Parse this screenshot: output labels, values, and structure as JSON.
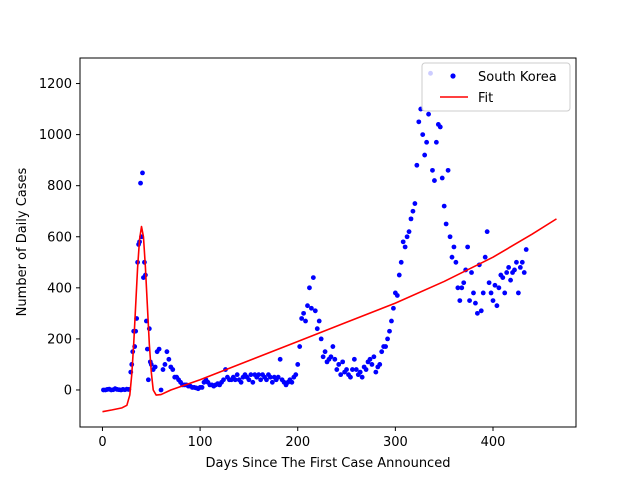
{
  "chart_data": {
    "type": "scatter",
    "xlabel": "Days Since The First Case Announced",
    "ylabel": "Number of Daily Cases",
    "xlim": [
      -23,
      485
    ],
    "ylim": [
      -145,
      1300
    ],
    "xticks": [
      0,
      100,
      200,
      300,
      400
    ],
    "yticks": [
      0,
      200,
      400,
      600,
      800,
      1000,
      1200
    ],
    "grid": false,
    "legend_position": "top-right",
    "series": [
      {
        "name": "South Korea",
        "kind": "scatter",
        "color": "#0000ff",
        "points": [
          [
            1,
            0
          ],
          [
            3,
            0
          ],
          [
            5,
            2
          ],
          [
            7,
            3
          ],
          [
            9,
            0
          ],
          [
            11,
            1
          ],
          [
            13,
            5
          ],
          [
            15,
            2
          ],
          [
            17,
            1
          ],
          [
            19,
            0
          ],
          [
            21,
            2
          ],
          [
            23,
            1
          ],
          [
            25,
            3
          ],
          [
            27,
            2
          ],
          [
            29,
            70
          ],
          [
            30,
            100
          ],
          [
            31,
            150
          ],
          [
            32,
            230
          ],
          [
            33,
            170
          ],
          [
            34,
            230
          ],
          [
            35,
            280
          ],
          [
            36,
            500
          ],
          [
            37,
            570
          ],
          [
            38,
            580
          ],
          [
            39,
            810
          ],
          [
            40,
            600
          ],
          [
            41,
            850
          ],
          [
            42,
            440
          ],
          [
            43,
            500
          ],
          [
            44,
            450
          ],
          [
            45,
            270
          ],
          [
            46,
            160
          ],
          [
            47,
            40
          ],
          [
            48,
            240
          ],
          [
            49,
            110
          ],
          [
            50,
            100
          ],
          [
            52,
            80
          ],
          [
            54,
            90
          ],
          [
            56,
            150
          ],
          [
            58,
            160
          ],
          [
            60,
            0
          ],
          [
            62,
            80
          ],
          [
            64,
            100
          ],
          [
            66,
            150
          ],
          [
            68,
            120
          ],
          [
            70,
            90
          ],
          [
            72,
            80
          ],
          [
            74,
            50
          ],
          [
            76,
            50
          ],
          [
            78,
            40
          ],
          [
            80,
            30
          ],
          [
            82,
            20
          ],
          [
            84,
            20
          ],
          [
            86,
            20
          ],
          [
            88,
            15
          ],
          [
            90,
            15
          ],
          [
            92,
            10
          ],
          [
            94,
            10
          ],
          [
            96,
            8
          ],
          [
            98,
            5
          ],
          [
            100,
            10
          ],
          [
            102,
            10
          ],
          [
            104,
            30
          ],
          [
            106,
            40
          ],
          [
            108,
            30
          ],
          [
            110,
            20
          ],
          [
            112,
            20
          ],
          [
            114,
            15
          ],
          [
            116,
            20
          ],
          [
            118,
            25
          ],
          [
            120,
            20
          ],
          [
            122,
            30
          ],
          [
            124,
            40
          ],
          [
            126,
            80
          ],
          [
            128,
            50
          ],
          [
            130,
            40
          ],
          [
            132,
            40
          ],
          [
            134,
            50
          ],
          [
            136,
            40
          ],
          [
            138,
            60
          ],
          [
            140,
            40
          ],
          [
            142,
            30
          ],
          [
            144,
            50
          ],
          [
            146,
            60
          ],
          [
            148,
            50
          ],
          [
            150,
            40
          ],
          [
            152,
            60
          ],
          [
            154,
            30
          ],
          [
            156,
            60
          ],
          [
            158,
            50
          ],
          [
            160,
            60
          ],
          [
            162,
            40
          ],
          [
            164,
            60
          ],
          [
            166,
            50
          ],
          [
            168,
            40
          ],
          [
            170,
            60
          ],
          [
            172,
            50
          ],
          [
            174,
            30
          ],
          [
            176,
            50
          ],
          [
            178,
            40
          ],
          [
            180,
            50
          ],
          [
            182,
            120
          ],
          [
            184,
            40
          ],
          [
            186,
            30
          ],
          [
            188,
            20
          ],
          [
            190,
            30
          ],
          [
            192,
            40
          ],
          [
            194,
            30
          ],
          [
            196,
            50
          ],
          [
            198,
            60
          ],
          [
            200,
            100
          ],
          [
            202,
            170
          ],
          [
            204,
            280
          ],
          [
            206,
            300
          ],
          [
            208,
            270
          ],
          [
            210,
            330
          ],
          [
            212,
            400
          ],
          [
            214,
            320
          ],
          [
            216,
            440
          ],
          [
            218,
            310
          ],
          [
            220,
            240
          ],
          [
            222,
            270
          ],
          [
            224,
            200
          ],
          [
            226,
            130
          ],
          [
            228,
            150
          ],
          [
            230,
            110
          ],
          [
            232,
            120
          ],
          [
            234,
            130
          ],
          [
            236,
            170
          ],
          [
            238,
            120
          ],
          [
            240,
            80
          ],
          [
            242,
            100
          ],
          [
            244,
            60
          ],
          [
            246,
            110
          ],
          [
            248,
            70
          ],
          [
            250,
            80
          ],
          [
            252,
            60
          ],
          [
            254,
            50
          ],
          [
            256,
            80
          ],
          [
            258,
            120
          ],
          [
            260,
            80
          ],
          [
            262,
            60
          ],
          [
            264,
            70
          ],
          [
            266,
            50
          ],
          [
            268,
            90
          ],
          [
            270,
            80
          ],
          [
            272,
            110
          ],
          [
            274,
            120
          ],
          [
            276,
            100
          ],
          [
            278,
            130
          ],
          [
            280,
            70
          ],
          [
            282,
            90
          ],
          [
            284,
            100
          ],
          [
            286,
            150
          ],
          [
            288,
            170
          ],
          [
            290,
            170
          ],
          [
            292,
            200
          ],
          [
            294,
            230
          ],
          [
            296,
            270
          ],
          [
            298,
            320
          ],
          [
            300,
            380
          ],
          [
            302,
            370
          ],
          [
            304,
            450
          ],
          [
            306,
            500
          ],
          [
            308,
            580
          ],
          [
            310,
            560
          ],
          [
            312,
            600
          ],
          [
            314,
            620
          ],
          [
            316,
            670
          ],
          [
            318,
            700
          ],
          [
            320,
            730
          ],
          [
            322,
            880
          ],
          [
            324,
            1050
          ],
          [
            326,
            1100
          ],
          [
            328,
            1000
          ],
          [
            330,
            920
          ],
          [
            332,
            970
          ],
          [
            334,
            1080
          ],
          [
            336,
            1240
          ],
          [
            338,
            860
          ],
          [
            340,
            820
          ],
          [
            342,
            970
          ],
          [
            344,
            1040
          ],
          [
            346,
            1030
          ],
          [
            348,
            830
          ],
          [
            350,
            720
          ],
          [
            352,
            650
          ],
          [
            354,
            860
          ],
          [
            356,
            600
          ],
          [
            358,
            520
          ],
          [
            360,
            560
          ],
          [
            362,
            500
          ],
          [
            364,
            400
          ],
          [
            366,
            350
          ],
          [
            368,
            400
          ],
          [
            370,
            420
          ],
          [
            372,
            470
          ],
          [
            374,
            560
          ],
          [
            376,
            350
          ],
          [
            378,
            460
          ],
          [
            380,
            380
          ],
          [
            382,
            340
          ],
          [
            384,
            300
          ],
          [
            386,
            490
          ],
          [
            388,
            310
          ],
          [
            390,
            380
          ],
          [
            392,
            520
          ],
          [
            394,
            620
          ],
          [
            396,
            420
          ],
          [
            398,
            380
          ],
          [
            400,
            350
          ],
          [
            402,
            410
          ],
          [
            404,
            330
          ],
          [
            406,
            400
          ],
          [
            408,
            450
          ],
          [
            410,
            440
          ],
          [
            412,
            380
          ],
          [
            414,
            460
          ],
          [
            416,
            480
          ],
          [
            418,
            430
          ],
          [
            420,
            460
          ],
          [
            422,
            470
          ],
          [
            424,
            500
          ],
          [
            426,
            380
          ],
          [
            428,
            480
          ],
          [
            430,
            500
          ],
          [
            432,
            460
          ],
          [
            434,
            550
          ]
        ]
      },
      {
        "name": "Fit",
        "kind": "line",
        "color": "#ff0000",
        "points": [
          [
            0,
            -85
          ],
          [
            10,
            -78
          ],
          [
            20,
            -70
          ],
          [
            25,
            -60
          ],
          [
            28,
            -20
          ],
          [
            30,
            60
          ],
          [
            32,
            180
          ],
          [
            34,
            330
          ],
          [
            36,
            480
          ],
          [
            38,
            590
          ],
          [
            40,
            640
          ],
          [
            42,
            600
          ],
          [
            44,
            480
          ],
          [
            46,
            330
          ],
          [
            48,
            180
          ],
          [
            50,
            70
          ],
          [
            52,
            0
          ],
          [
            55,
            -20
          ],
          [
            60,
            -18
          ],
          [
            70,
            0
          ],
          [
            100,
            40
          ],
          [
            150,
            115
          ],
          [
            200,
            190
          ],
          [
            250,
            265
          ],
          [
            300,
            340
          ],
          [
            350,
            425
          ],
          [
            400,
            520
          ],
          [
            440,
            610
          ],
          [
            465,
            670
          ]
        ]
      }
    ]
  }
}
